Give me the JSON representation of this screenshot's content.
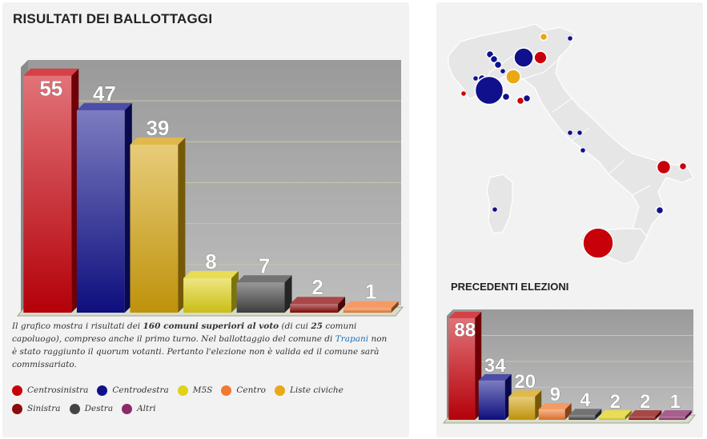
{
  "main_title": "RISULTATI DEI BALLOTTAGGI",
  "prev_title": "PRECEDENTI ELEZIONI",
  "caption": {
    "p1": "Il grafico mostra i risultati dei ",
    "b1": "160 comuni superiori al voto",
    "p2": " (di cui ",
    "b2": "25",
    "p3": " comuni capoluogo), compreso anche il primo turno. Nel ballottaggio del comune di ",
    "link": "Trapani",
    "p4": " non è stato raggiunto il quorum votanti. Pertanto l'elezione non è valida ed il comune sarà commissariato."
  },
  "legend": [
    {
      "label": "Centrosinistra",
      "color": "#c8000a"
    },
    {
      "label": "Centrodestra",
      "color": "#10108c"
    },
    {
      "label": "M5S",
      "color": "#e0d21a"
    },
    {
      "label": "Centro",
      "color": "#f07a30"
    },
    {
      "label": "Liste civiche",
      "color": "#e8a914"
    },
    {
      "label": "Sinistra",
      "color": "#8c0a0a"
    },
    {
      "label": "Destra",
      "color": "#444444"
    },
    {
      "label": "Altri",
      "color": "#8a2a6a"
    }
  ],
  "chart_data": [
    {
      "type": "bar",
      "title": "RISULTATI DEI BALLOTTAGGI",
      "categories": [
        "Centrosinistra",
        "Centrodestra",
        "Liste civiche",
        "M5S",
        "Destra",
        "Sinistra",
        "Centro"
      ],
      "values": [
        55,
        47,
        39,
        8,
        7,
        2,
        1
      ],
      "colors": [
        "#c8000a",
        "#10108c",
        "#d4a20c",
        "#e0d21a",
        "#444444",
        "#8c0a0a",
        "#f07a30"
      ],
      "ylim": [
        0,
        57
      ],
      "grid": true
    },
    {
      "type": "bar",
      "title": "PRECEDENTI ELEZIONI",
      "categories": [
        "Centrosinistra",
        "Centrodestra",
        "Liste civiche",
        "Centro",
        "Destra",
        "M5S",
        "Sinistra",
        "Altri"
      ],
      "values": [
        88,
        34,
        20,
        9,
        4,
        2,
        2,
        1
      ],
      "colors": [
        "#c8000a",
        "#10108c",
        "#d4a20c",
        "#f07a30",
        "#444444",
        "#e0d21a",
        "#8c0a0a",
        "#8a2a6a"
      ],
      "ylim": [
        0,
        90
      ],
      "grid": true
    }
  ],
  "map_bubbles": [
    {
      "color": "#e8a914",
      "size": 2
    },
    {
      "color": "#10108c",
      "size": 1
    },
    {
      "color": "#10108c",
      "size": 2
    },
    {
      "color": "#10108c",
      "size": 2
    },
    {
      "color": "#10108c",
      "size": 14
    },
    {
      "color": "#c8000a",
      "size": 6
    },
    {
      "color": "#10108c",
      "size": 2
    },
    {
      "color": "#10108c",
      "size": 1
    },
    {
      "color": "#e8a914",
      "size": 8
    },
    {
      "color": "#10108c",
      "size": 1
    },
    {
      "color": "#10108c",
      "size": 2
    },
    {
      "color": "#10108c",
      "size": 30
    },
    {
      "color": "#c8000a",
      "size": 1
    },
    {
      "color": "#10108c",
      "size": 2
    },
    {
      "color": "#c8000a",
      "size": 2
    },
    {
      "color": "#10108c",
      "size": 2
    },
    {
      "color": "#10108c",
      "size": 1
    },
    {
      "color": "#10108c",
      "size": 1
    },
    {
      "color": "#10108c",
      "size": 1
    },
    {
      "color": "#c8000a",
      "size": 7
    },
    {
      "color": "#c8000a",
      "size": 2
    },
    {
      "color": "#10108c",
      "size": 1
    },
    {
      "color": "#10108c",
      "size": 2
    },
    {
      "color": "#c8000a",
      "size": 35
    }
  ]
}
